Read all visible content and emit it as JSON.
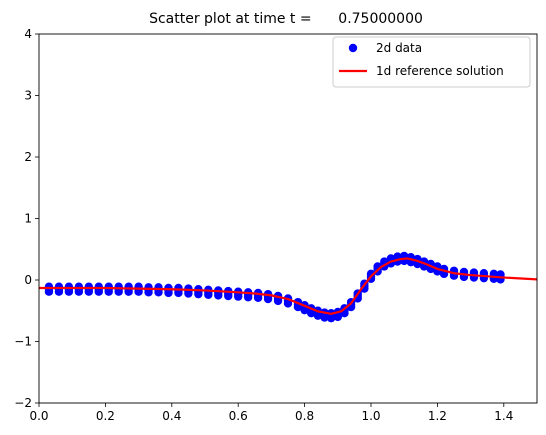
{
  "chart_data": {
    "type": "scatter",
    "title": "Scatter plot at time t =      0.75000000",
    "xlabel": "",
    "ylabel": "",
    "xlim": [
      0.0,
      1.5
    ],
    "ylim": [
      -2,
      4
    ],
    "x_ticks": [
      "0.0",
      "0.2",
      "0.4",
      "0.6",
      "0.8",
      "1.0",
      "1.2",
      "1.4"
    ],
    "y_ticks": [
      "−2",
      "−1",
      "0",
      "1",
      "2",
      "3",
      "4"
    ],
    "grid": false,
    "legend_position": "top-right",
    "series": [
      {
        "name": "2d data",
        "kind": "scatter",
        "color": "#0000ff",
        "points": [
          [
            0.03,
            -0.15
          ],
          [
            0.06,
            -0.15
          ],
          [
            0.09,
            -0.15
          ],
          [
            0.12,
            -0.15
          ],
          [
            0.15,
            -0.15
          ],
          [
            0.18,
            -0.15
          ],
          [
            0.21,
            -0.15
          ],
          [
            0.24,
            -0.15
          ],
          [
            0.27,
            -0.15
          ],
          [
            0.3,
            -0.15
          ],
          [
            0.33,
            -0.16
          ],
          [
            0.36,
            -0.16
          ],
          [
            0.39,
            -0.17
          ],
          [
            0.42,
            -0.17
          ],
          [
            0.45,
            -0.18
          ],
          [
            0.48,
            -0.19
          ],
          [
            0.51,
            -0.2
          ],
          [
            0.54,
            -0.21
          ],
          [
            0.57,
            -0.22
          ],
          [
            0.6,
            -0.23
          ],
          [
            0.63,
            -0.24
          ],
          [
            0.66,
            -0.25
          ],
          [
            0.69,
            -0.27
          ],
          [
            0.72,
            -0.3
          ],
          [
            0.75,
            -0.34
          ],
          [
            0.78,
            -0.4
          ],
          [
            0.8,
            -0.45
          ],
          [
            0.82,
            -0.5
          ],
          [
            0.84,
            -0.54
          ],
          [
            0.86,
            -0.57
          ],
          [
            0.88,
            -0.58
          ],
          [
            0.9,
            -0.56
          ],
          [
            0.92,
            -0.5
          ],
          [
            0.94,
            -0.4
          ],
          [
            0.96,
            -0.26
          ],
          [
            0.98,
            -0.1
          ],
          [
            1.0,
            0.06
          ],
          [
            1.02,
            0.18
          ],
          [
            1.04,
            0.26
          ],
          [
            1.06,
            0.31
          ],
          [
            1.08,
            0.34
          ],
          [
            1.1,
            0.35
          ],
          [
            1.12,
            0.33
          ],
          [
            1.14,
            0.3
          ],
          [
            1.16,
            0.26
          ],
          [
            1.18,
            0.22
          ],
          [
            1.2,
            0.18
          ],
          [
            1.22,
            0.14
          ],
          [
            1.25,
            0.11
          ],
          [
            1.28,
            0.09
          ],
          [
            1.31,
            0.08
          ],
          [
            1.34,
            0.07
          ],
          [
            1.37,
            0.06
          ],
          [
            1.39,
            0.05
          ]
        ],
        "spread": 0.04
      },
      {
        "name": "1d reference solution",
        "kind": "line",
        "color": "#ff0000",
        "points": [
          [
            0.0,
            -0.13
          ],
          [
            0.1,
            -0.13
          ],
          [
            0.2,
            -0.13
          ],
          [
            0.3,
            -0.14
          ],
          [
            0.4,
            -0.15
          ],
          [
            0.5,
            -0.17
          ],
          [
            0.6,
            -0.2
          ],
          [
            0.65,
            -0.22
          ],
          [
            0.7,
            -0.25
          ],
          [
            0.75,
            -0.31
          ],
          [
            0.8,
            -0.42
          ],
          [
            0.84,
            -0.51
          ],
          [
            0.88,
            -0.55
          ],
          [
            0.91,
            -0.51
          ],
          [
            0.94,
            -0.38
          ],
          [
            0.97,
            -0.15
          ],
          [
            1.0,
            0.06
          ],
          [
            1.03,
            0.21
          ],
          [
            1.06,
            0.3
          ],
          [
            1.09,
            0.34
          ],
          [
            1.11,
            0.35
          ],
          [
            1.14,
            0.31
          ],
          [
            1.17,
            0.25
          ],
          [
            1.2,
            0.18
          ],
          [
            1.25,
            0.11
          ],
          [
            1.3,
            0.08
          ],
          [
            1.4,
            0.04
          ],
          [
            1.5,
            0.01
          ]
        ]
      }
    ]
  }
}
